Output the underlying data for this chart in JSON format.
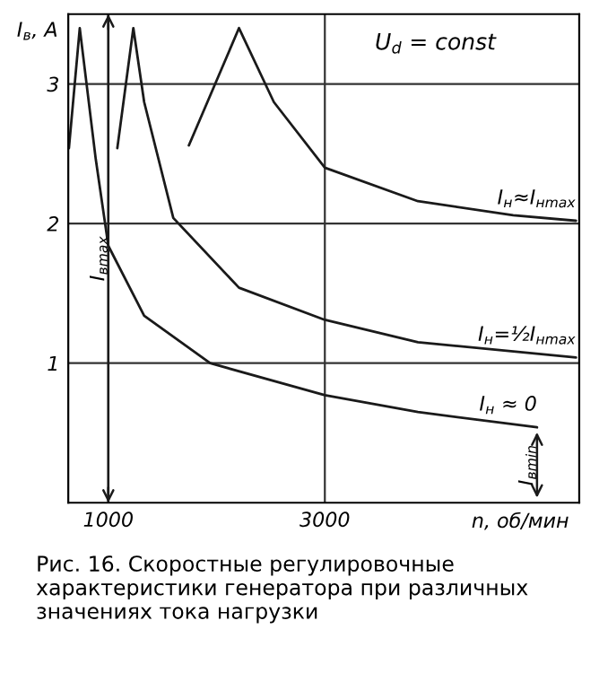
{
  "chart_data": {
    "type": "line",
    "xlabel": "n, об/мин",
    "ylabel": "I$_{в}$, A",
    "xlim": [
      630,
      5350
    ],
    "ylim": [
      0,
      3.5
    ],
    "xticks": [
      1000,
      3000
    ],
    "yticks": [
      1,
      2,
      3
    ],
    "grid": true,
    "line_style": "solid",
    "series": [
      {
        "name": "I$_{н}$≈I$_{нmax}$",
        "color": "#1a1a1a",
        "x": [
          1744,
          2207,
          2529,
          3000,
          3860,
          4740,
          5320
        ],
        "values": [
          2.56,
          3.4,
          2.87,
          2.4,
          2.16,
          2.06,
          2.02
        ]
      },
      {
        "name": "I$_{н}$=½I$_{нmax}$",
        "color": "#1a1a1a",
        "x": [
          1083,
          1231,
          1331,
          1600,
          2207,
          3000,
          3860,
          5320
        ],
        "values": [
          2.54,
          3.4,
          2.87,
          2.04,
          1.54,
          1.31,
          1.15,
          1.04
        ]
      },
      {
        "name": "I$_{н}$ ≈ 0",
        "color": "#1a1a1a",
        "x": [
          636,
          736,
          884,
          1000,
          1331,
          1940,
          3000,
          3860,
          4960
        ],
        "values": [
          2.54,
          3.4,
          2.46,
          1.84,
          1.34,
          1.0,
          0.77,
          0.65,
          0.54
        ]
      }
    ],
    "ref_lines": [
      {
        "axis": "x",
        "value": 1000,
        "label": "I$_{вmax}$"
      }
    ],
    "annotations": [
      "U$_{d}$ = const",
      {
        "text": "I$_{вmin}$",
        "x": 4960,
        "y": 0.54
      },
      "Рис. 16. Скоростные регулировочные характеристики генератора при различных значениях тока нагрузки"
    ]
  }
}
